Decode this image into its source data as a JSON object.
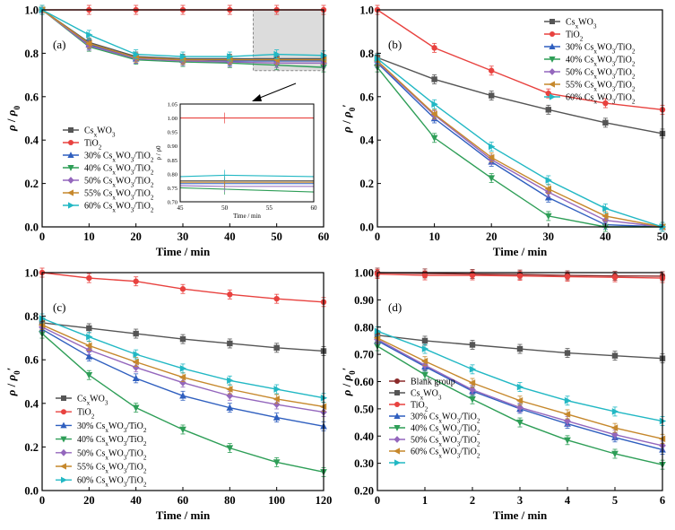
{
  "chart_data": [
    {
      "type": "line",
      "panel_label": "(a)",
      "xlabel": "Time / min",
      "ylabel_html": [
        "ρ",
        " / ",
        "ρ",
        "0"
      ],
      "xlim": [
        0,
        60
      ],
      "ylim": [
        0.0,
        1.0
      ],
      "xticks": [
        0,
        10,
        20,
        30,
        40,
        50,
        60
      ],
      "yticks": [
        0.0,
        0.2,
        0.4,
        0.6,
        0.8,
        1.0
      ],
      "x": [
        0,
        10,
        20,
        30,
        40,
        50,
        60
      ],
      "series": [
        {
          "name": "Cs$WO3",
          "color": "#555555",
          "marker": "square",
          "values": [
            1.0,
            0.85,
            0.785,
            0.775,
            0.775,
            0.775,
            0.775
          ]
        },
        {
          "name": "TiO2",
          "color": "#e8423f",
          "marker": "circle",
          "values": [
            1.0,
            1.0,
            1.0,
            1.0,
            1.0,
            1.0,
            1.0
          ]
        },
        {
          "name": "30% Cs$WO3/TiO2",
          "color": "#2f5fbf",
          "marker": "triangle",
          "values": [
            1.0,
            0.84,
            0.775,
            0.77,
            0.765,
            0.765,
            0.765
          ]
        },
        {
          "name": "40% Cs$WO3/TiO2",
          "color": "#2e9e57",
          "marker": "triangle-down",
          "values": [
            1.0,
            0.83,
            0.77,
            0.76,
            0.755,
            0.745,
            0.735
          ]
        },
        {
          "name": "50% Cs$WO3/TiO2",
          "color": "#9467bd",
          "marker": "diamond",
          "values": [
            1.0,
            0.835,
            0.775,
            0.765,
            0.76,
            0.755,
            0.755
          ]
        },
        {
          "name": "55% Cs$WO3/TiO2",
          "color": "#c6882c",
          "marker": "triangle-left",
          "values": [
            1.0,
            0.845,
            0.78,
            0.77,
            0.77,
            0.77,
            0.77
          ]
        },
        {
          "name": "60% Cs$WO3/TiO2",
          "color": "#22b8c4",
          "marker": "triangle-right",
          "values": [
            1.0,
            0.885,
            0.795,
            0.785,
            0.785,
            0.795,
            0.79
          ]
        }
      ],
      "inset": {
        "xlabel": "Time / min",
        "ylabel_html": [
          "ρ",
          " / ",
          "ρ",
          "0"
        ],
        "xlim": [
          45,
          60
        ],
        "ylim": [
          0.7,
          1.05
        ],
        "xticks": [
          45,
          50,
          55,
          60
        ],
        "yticks": [
          0.7,
          0.75,
          0.8,
          0.85,
          0.9,
          0.95,
          1.0,
          1.05
        ],
        "x": [
          45,
          50,
          60
        ]
      },
      "legend": "lower-left"
    },
    {
      "type": "line",
      "panel_label": "(b)",
      "xlabel": "Time / min",
      "ylabel_html": [
        "ρ",
        " / ",
        "ρ",
        "0",
        "′"
      ],
      "xlim": [
        0,
        50
      ],
      "ylim": [
        0.0,
        1.0
      ],
      "xticks": [
        0,
        10,
        20,
        30,
        40,
        50
      ],
      "yticks": [
        0.0,
        0.2,
        0.4,
        0.6,
        0.8,
        1.0
      ],
      "x": [
        0,
        10,
        20,
        30,
        40,
        50
      ],
      "series": [
        {
          "name": "Cs$WO3",
          "color": "#555555",
          "marker": "square",
          "values": [
            0.78,
            0.68,
            0.605,
            0.54,
            0.48,
            0.43
          ]
        },
        {
          "name": "TiO2",
          "color": "#e8423f",
          "marker": "circle",
          "values": [
            1.0,
            0.825,
            0.72,
            0.615,
            0.57,
            0.54
          ]
        },
        {
          "name": "30% Cs$WO3/TiO2",
          "color": "#2f5fbf",
          "marker": "triangle",
          "values": [
            0.755,
            0.5,
            0.3,
            0.135,
            0.01,
            0.0
          ]
        },
        {
          "name": "40% Cs$WO3/TiO2",
          "color": "#2e9e57",
          "marker": "triangle-down",
          "values": [
            0.735,
            0.41,
            0.225,
            0.05,
            0.0,
            0.0
          ]
        },
        {
          "name": "50% Cs$WO3/TiO2",
          "color": "#9467bd",
          "marker": "diamond",
          "values": [
            0.76,
            0.515,
            0.31,
            0.16,
            0.03,
            0.0
          ]
        },
        {
          "name": "55% Cs$WO3/TiO2",
          "color": "#c6882c",
          "marker": "triangle-left",
          "values": [
            0.765,
            0.52,
            0.32,
            0.175,
            0.05,
            0.0
          ]
        },
        {
          "name": "60% Cs$WO3/TiO2",
          "color": "#22b8c4",
          "marker": "triangle-right",
          "values": [
            0.775,
            0.565,
            0.37,
            0.215,
            0.085,
            0.0
          ]
        }
      ],
      "legend": "top-right"
    },
    {
      "type": "line",
      "panel_label": "(c)",
      "xlabel": "Time / min",
      "ylabel_html": [
        "ρ",
        " / ",
        "ρ",
        "0",
        "′"
      ],
      "xlim": [
        0,
        120
      ],
      "ylim": [
        0.0,
        1.0
      ],
      "xticks": [
        0,
        20,
        40,
        60,
        80,
        100,
        120
      ],
      "yticks": [
        0.0,
        0.2,
        0.4,
        0.6,
        0.8,
        1.0
      ],
      "x": [
        0,
        20,
        40,
        60,
        80,
        100,
        120
      ],
      "series": [
        {
          "name": "Cs$WO3",
          "color": "#555555",
          "marker": "square",
          "values": [
            0.77,
            0.745,
            0.72,
            0.695,
            0.675,
            0.655,
            0.64
          ]
        },
        {
          "name": "TiO2",
          "color": "#e8423f",
          "marker": "circle",
          "values": [
            1.0,
            0.975,
            0.96,
            0.925,
            0.9,
            0.88,
            0.865
          ]
        },
        {
          "name": "30% Cs$WO3/TiO2",
          "color": "#2f5fbf",
          "marker": "triangle",
          "values": [
            0.74,
            0.615,
            0.515,
            0.435,
            0.38,
            0.335,
            0.295
          ]
        },
        {
          "name": "40% Cs$WO3/TiO2",
          "color": "#2e9e57",
          "marker": "triangle-down",
          "values": [
            0.72,
            0.53,
            0.38,
            0.28,
            0.195,
            0.13,
            0.085
          ]
        },
        {
          "name": "50% Cs$WO3/TiO2",
          "color": "#9467bd",
          "marker": "diamond",
          "values": [
            0.75,
            0.645,
            0.565,
            0.495,
            0.435,
            0.395,
            0.36
          ]
        },
        {
          "name": "55% Cs$WO3/TiO2",
          "color": "#c6882c",
          "marker": "triangle-left",
          "values": [
            0.76,
            0.665,
            0.59,
            0.52,
            0.465,
            0.42,
            0.385
          ]
        },
        {
          "name": "60% Cs$WO3/TiO2",
          "color": "#22b8c4",
          "marker": "triangle-right",
          "values": [
            0.79,
            0.705,
            0.625,
            0.56,
            0.505,
            0.465,
            0.425
          ]
        }
      ],
      "legend": "lower-left"
    },
    {
      "type": "line",
      "panel_label": "(d)",
      "xlabel": "Time / min",
      "ylabel_html": [
        "ρ",
        " / ",
        "ρ",
        "0",
        "′"
      ],
      "xlim": [
        0,
        6
      ],
      "ylim": [
        0.2,
        1.0
      ],
      "xticks": [
        0,
        1,
        2,
        3,
        4,
        5,
        6
      ],
      "yticks": [
        0.2,
        0.3,
        0.4,
        0.5,
        0.6,
        0.7,
        0.8,
        0.9,
        1.0
      ],
      "x": [
        0,
        1,
        2,
        3,
        4,
        5,
        6
      ],
      "series": [
        {
          "name": "Blank group",
          "color": "#8b2a2a",
          "marker": "circle",
          "values": [
            1.0,
            0.997,
            0.995,
            0.993,
            0.99,
            0.988,
            0.987
          ]
        },
        {
          "name": "Cs$WO3",
          "color": "#555555",
          "marker": "square",
          "values": [
            0.77,
            0.75,
            0.735,
            0.72,
            0.705,
            0.695,
            0.685
          ]
        },
        {
          "name": "TiO2",
          "color": "#e8423f",
          "marker": "circle",
          "values": [
            0.995,
            0.99,
            0.99,
            0.988,
            0.985,
            0.983,
            0.98
          ]
        },
        {
          "name": "30% Cs$WO3/TiO2",
          "color": "#2f5fbf",
          "marker": "triangle",
          "values": [
            0.75,
            0.655,
            0.565,
            0.5,
            0.445,
            0.395,
            0.35
          ]
        },
        {
          "name": "40% Cs$WO3/TiO2",
          "color": "#2e9e57",
          "marker": "triangle-down",
          "values": [
            0.73,
            0.625,
            0.535,
            0.45,
            0.385,
            0.335,
            0.295
          ]
        },
        {
          "name": "50% Cs$WO3/TiO2",
          "color": "#9467bd",
          "marker": "diamond",
          "values": [
            0.755,
            0.66,
            0.57,
            0.505,
            0.455,
            0.405,
            0.365
          ]
        },
        {
          "name": "60% Cs$WO3/TiO2",
          "color": "#c6882c",
          "marker": "triangle-left",
          "values": [
            0.76,
            0.675,
            0.595,
            0.53,
            0.48,
            0.43,
            0.39
          ]
        },
        {
          "name": "",
          "color": "#22b8c4",
          "marker": "triangle-right",
          "values": [
            0.785,
            0.72,
            0.645,
            0.58,
            0.53,
            0.49,
            0.455
          ]
        }
      ],
      "legend": "lower-left"
    }
  ]
}
